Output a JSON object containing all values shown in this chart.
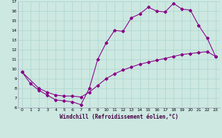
{
  "xlabel": "Windchill (Refroidissement éolien,°C)",
  "background_color": "#cce8e0",
  "line_color": "#880088",
  "xlim": [
    -0.5,
    23.5
  ],
  "ylim": [
    6,
    17
  ],
  "xticks": [
    0,
    1,
    2,
    3,
    4,
    5,
    6,
    7,
    8,
    9,
    10,
    11,
    12,
    13,
    14,
    15,
    16,
    17,
    18,
    19,
    20,
    21,
    22,
    23
  ],
  "yticks": [
    6,
    7,
    8,
    9,
    10,
    11,
    12,
    13,
    14,
    15,
    16,
    17
  ],
  "line1_x": [
    0,
    1,
    2,
    3,
    4,
    5,
    6,
    7,
    8,
    9,
    10,
    11,
    12,
    13,
    14,
    15,
    16,
    17,
    18,
    19,
    20,
    21,
    22,
    23
  ],
  "line1_y": [
    9.7,
    8.5,
    7.8,
    7.3,
    6.8,
    6.7,
    6.6,
    6.3,
    8.0,
    11.0,
    12.7,
    14.0,
    13.9,
    15.3,
    15.7,
    16.4,
    16.0,
    15.9,
    16.8,
    16.2,
    16.1,
    14.5,
    13.2,
    11.3
  ],
  "line2_x": [
    0,
    2,
    3,
    4,
    5,
    6,
    7,
    8,
    9,
    10,
    11,
    12,
    13,
    14,
    15,
    16,
    17,
    18,
    19,
    20,
    21,
    22,
    23
  ],
  "line2_y": [
    9.7,
    8.0,
    7.6,
    7.3,
    7.2,
    7.2,
    7.1,
    7.6,
    8.3,
    9.0,
    9.5,
    9.9,
    10.2,
    10.5,
    10.7,
    10.9,
    11.1,
    11.3,
    11.5,
    11.6,
    11.7,
    11.8,
    11.3
  ],
  "marker": "D",
  "markersize": 2.0,
  "linewidth": 0.8
}
